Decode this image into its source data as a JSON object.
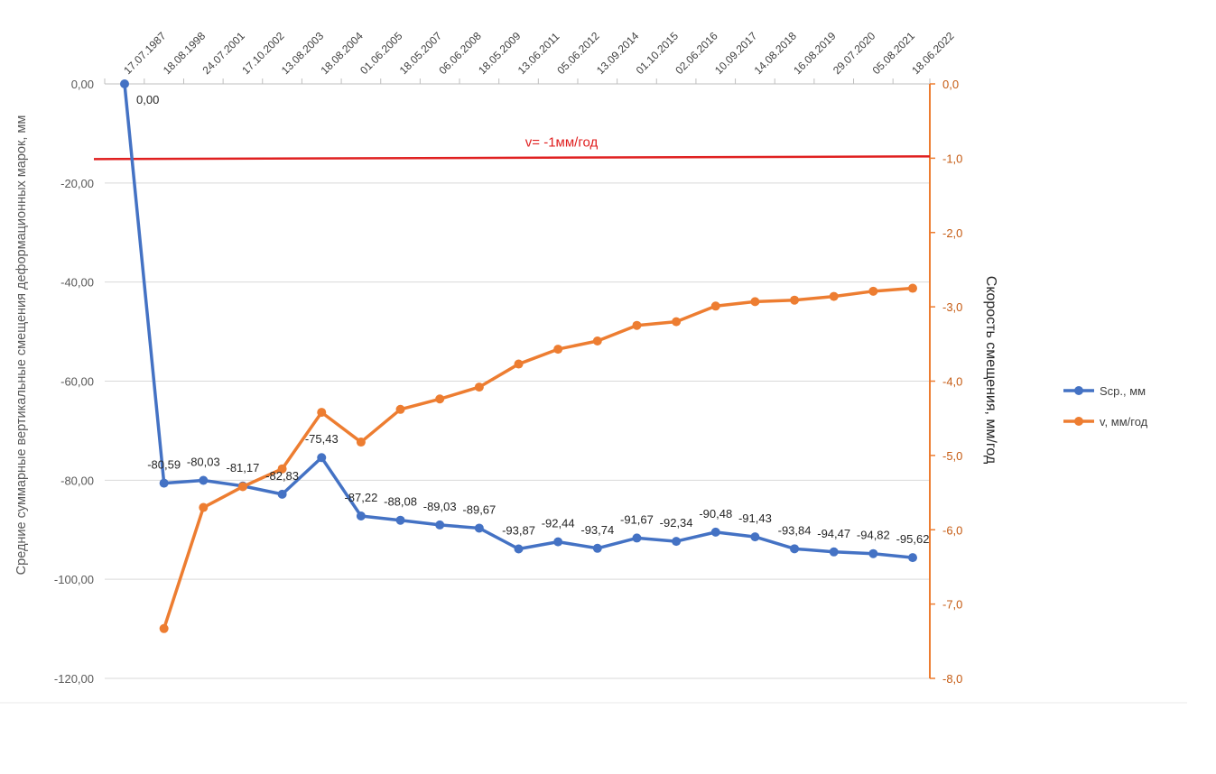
{
  "chart_data": {
    "type": "line",
    "x": [
      "17.07.1987",
      "18.08.1998",
      "24.07.2001",
      "17.10.2002",
      "13.08.2003",
      "18.08.2004",
      "01.06.2005",
      "18.05.2007",
      "06.06.2008",
      "18.05.2009",
      "13.06.2011",
      "05.06.2012",
      "13.09.2014",
      "01.10.2015",
      "02.06.2016",
      "10.09.2017",
      "14.08.2018",
      "16.08.2019",
      "29.07.2020",
      "05.08.2021",
      "18.06.2022"
    ],
    "y_left": {
      "label": "Средние суммарные вертикальные смещения деформационных марок, мм",
      "range": [
        -120,
        0
      ],
      "ticks": [
        "0,00",
        "-20,00",
        "-40,00",
        "-60,00",
        "-80,00",
        "-100,00",
        "-120,00"
      ],
      "tick_values": [
        0,
        -20,
        -40,
        -60,
        -80,
        -100,
        -120
      ]
    },
    "y_right": {
      "label": "Скорость смещения, мм/год",
      "range": [
        -8,
        0
      ],
      "ticks": [
        "0,0",
        "-1,0",
        "-2,0",
        "-3,0",
        "-4,0",
        "-5,0",
        "-6,0",
        "-7,0",
        "-8,0"
      ],
      "tick_values": [
        0,
        -1,
        -2,
        -3,
        -4,
        -5,
        -6,
        -7,
        -8
      ]
    },
    "series": [
      {
        "name": "Scp., мм",
        "axis": "left",
        "color": "#4472C4",
        "values": [
          0,
          -80.59,
          -80.03,
          -81.17,
          -82.83,
          -75.43,
          -87.22,
          -88.08,
          -89.03,
          -89.67,
          -93.87,
          -92.44,
          -93.74,
          -91.67,
          -92.34,
          -90.48,
          -91.43,
          -93.84,
          -94.47,
          -94.82,
          -95.62
        ],
        "labels": [
          "0,00",
          "-80,59",
          "-80,03",
          "-81,17",
          "-82,83",
          "-75,43",
          "-87,22",
          "-88,08",
          "-89,03",
          "-89,67",
          "-93,87",
          "-92,44",
          "-93,74",
          "-91,67",
          "-92,34",
          "-90,48",
          "-91,43",
          "-93,84",
          "-94,47",
          "-94,82",
          "-95,62"
        ]
      },
      {
        "name": "v, мм/год",
        "axis": "right",
        "color": "#ED7D31",
        "values": [
          null,
          -7.33,
          -5.7,
          -5.42,
          -5.18,
          -4.42,
          -4.82,
          -4.38,
          -4.24,
          -4.08,
          -3.77,
          -3.57,
          -3.46,
          -3.25,
          -3.2,
          -2.99,
          -2.93,
          -2.91,
          -2.86,
          -2.79,
          -2.75
        ]
      }
    ],
    "reference_line": {
      "label": "v= -1мм/год",
      "value": -1,
      "axis": "right",
      "color": "#E02020"
    },
    "legend": {
      "position": "right"
    },
    "grid": true
  }
}
